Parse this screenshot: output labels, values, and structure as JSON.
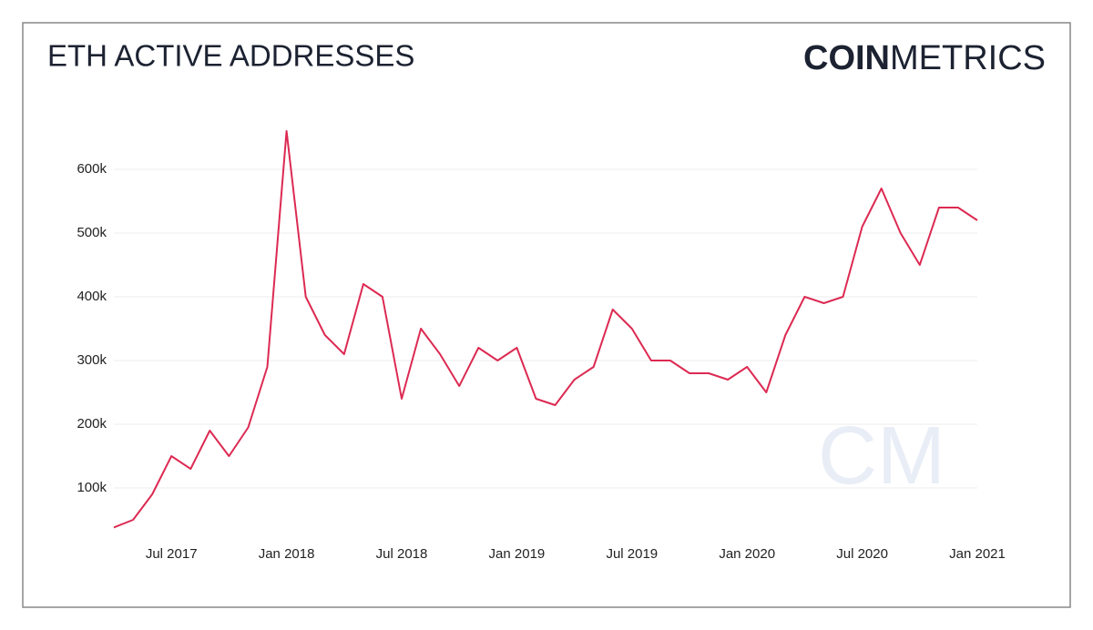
{
  "chart_data": {
    "type": "line",
    "title": "ETH ACTIVE ADDRESSES",
    "brand": {
      "bold": "COIN",
      "light": "METRICS"
    },
    "watermark": "CM",
    "x": [
      "2017-04",
      "2017-05",
      "2017-06",
      "2017-07",
      "2017-08",
      "2017-09",
      "2017-10",
      "2017-11",
      "2017-12",
      "2018-01",
      "2018-02",
      "2018-03",
      "2018-04",
      "2018-05",
      "2018-06",
      "2018-07",
      "2018-08",
      "2018-09",
      "2018-10",
      "2018-11",
      "2018-12",
      "2019-01",
      "2019-02",
      "2019-03",
      "2019-04",
      "2019-05",
      "2019-06",
      "2019-07",
      "2019-08",
      "2019-09",
      "2019-10",
      "2019-11",
      "2019-12",
      "2020-01",
      "2020-02",
      "2020-03",
      "2020-04",
      "2020-05",
      "2020-06",
      "2020-07",
      "2020-08",
      "2020-09",
      "2020-10",
      "2020-11",
      "2020-12",
      "2021-01"
    ],
    "series": [
      {
        "name": "Active Addresses",
        "color": "#dc2a52",
        "values": [
          38000,
          50000,
          90000,
          150000,
          130000,
          190000,
          150000,
          195000,
          290000,
          660000,
          400000,
          340000,
          310000,
          420000,
          400000,
          240000,
          350000,
          310000,
          260000,
          320000,
          300000,
          320000,
          240000,
          230000,
          270000,
          290000,
          380000,
          350000,
          300000,
          300000,
          280000,
          280000,
          270000,
          290000,
          250000,
          340000,
          400000,
          390000,
          400000,
          510000,
          570000,
          500000,
          450000,
          540000,
          540000,
          520000
        ]
      }
    ],
    "xlim": [
      "2017-04",
      "2021-01"
    ],
    "xticks": [
      {
        "value": "2017-07",
        "label": "Jul 2017"
      },
      {
        "value": "2018-01",
        "label": "Jan 2018"
      },
      {
        "value": "2018-07",
        "label": "Jul 2018"
      },
      {
        "value": "2019-01",
        "label": "Jan 2019"
      },
      {
        "value": "2019-07",
        "label": "Jul 2019"
      },
      {
        "value": "2020-01",
        "label": "Jan 2020"
      },
      {
        "value": "2020-07",
        "label": "Jul 2020"
      },
      {
        "value": "2021-01",
        "label": "Jan 2021"
      }
    ],
    "ylim": [
      30000,
      680000
    ],
    "yticks": [
      {
        "value": 100000,
        "label": "100k"
      },
      {
        "value": 200000,
        "label": "200k"
      },
      {
        "value": 300000,
        "label": "300k"
      },
      {
        "value": 400000,
        "label": "400k"
      },
      {
        "value": 500000,
        "label": "500k"
      },
      {
        "value": 600000,
        "label": "600k"
      }
    ],
    "grid": true
  }
}
